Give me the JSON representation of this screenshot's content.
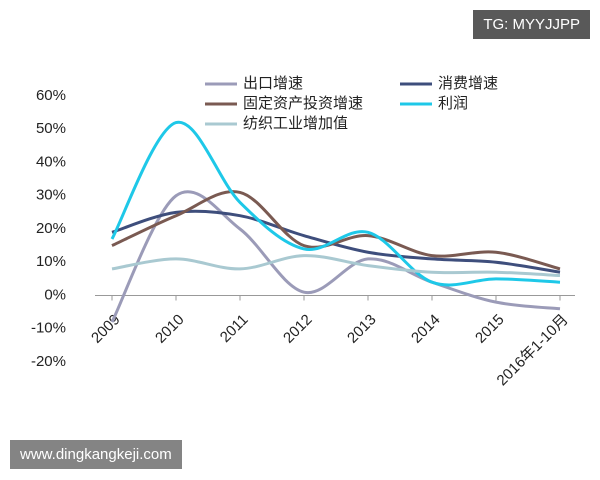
{
  "chart_data": {
    "type": "line",
    "categories": [
      "2009",
      "2010",
      "2011",
      "2012",
      "2013",
      "2014",
      "2015",
      "2016年1-10月"
    ],
    "series": [
      {
        "name": "出口增速",
        "color": "#9b9bb8",
        "values": [
          -8,
          30,
          20,
          1,
          11,
          4,
          -2,
          -4
        ]
      },
      {
        "name": "消费增速",
        "color": "#3e4e7c",
        "values": [
          19,
          25,
          24,
          18,
          13,
          11,
          10,
          7
        ]
      },
      {
        "name": "固定资产投资增速",
        "color": "#7a5a52",
        "values": [
          15,
          24,
          31,
          15,
          18,
          12,
          13,
          8
        ]
      },
      {
        "name": "利润",
        "color": "#1ec8e8",
        "values": [
          17,
          52,
          28,
          14,
          19,
          4,
          5,
          4
        ]
      },
      {
        "name": "纺织工业增加值",
        "color": "#a9c9d1",
        "values": [
          8,
          11,
          8,
          12,
          9,
          7,
          7,
          6
        ]
      }
    ],
    "ylim": [
      -20,
      60
    ],
    "yticks": [
      {
        "value": -20,
        "label": "-20%"
      },
      {
        "value": -10,
        "label": "-10%"
      },
      {
        "value": 0,
        "label": "0%"
      },
      {
        "value": 10,
        "label": "10%"
      },
      {
        "value": 20,
        "label": "20%"
      },
      {
        "value": 30,
        "label": "30%"
      },
      {
        "value": 40,
        "label": "40%"
      },
      {
        "value": 50,
        "label": "50%"
      },
      {
        "value": 60,
        "label": "60%"
      }
    ],
    "annotations": [
      "TG: MYYJJPP",
      "www.dingkangkeji.com"
    ]
  }
}
